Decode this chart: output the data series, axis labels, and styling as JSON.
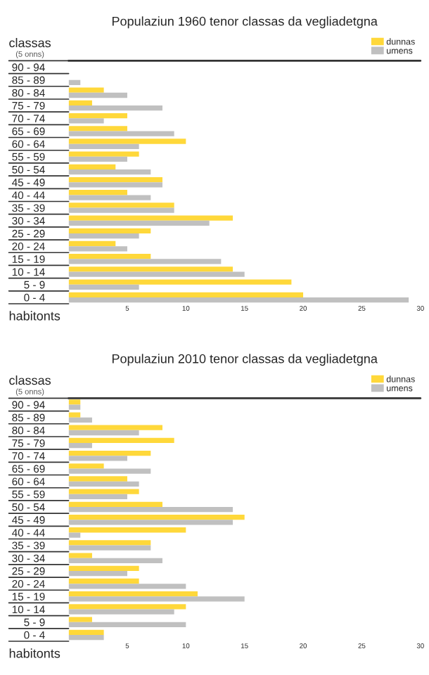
{
  "chart_data": [
    {
      "type": "bar",
      "orientation": "horizontal",
      "title": "Populaziun 1960 tenor classas da vegliadetgna",
      "ylabel": "classas",
      "xlabel": "habitonts",
      "annotations": [
        "(5 onns)"
      ],
      "categories": [
        "90 - 94",
        "85 - 89",
        "80 - 84",
        "75 - 79",
        "70 - 74",
        "65 - 69",
        "60 - 64",
        "55 - 59",
        "50 - 54",
        "45 - 49",
        "40 - 44",
        "35 - 39",
        "30 - 34",
        "25 - 29",
        "20 - 24",
        "15 - 19",
        "10 - 14",
        "5 - 9",
        "0 - 4"
      ],
      "series": [
        {
          "name": "dunnas",
          "color": "#ffd83a",
          "values": [
            0,
            0,
            3,
            2,
            5,
            5,
            10,
            6,
            4,
            8,
            5,
            9,
            14,
            7,
            4,
            7,
            14,
            19,
            20
          ]
        },
        {
          "name": "umens",
          "color": "#c0c0c0",
          "values": [
            0,
            1,
            5,
            8,
            3,
            9,
            6,
            5,
            7,
            8,
            7,
            9,
            12,
            6,
            5,
            13,
            15,
            6,
            29
          ]
        }
      ],
      "xlim": [
        0,
        30
      ],
      "xticks": [
        5,
        10,
        15,
        20,
        25,
        30
      ],
      "grid": false,
      "legend": "top right"
    },
    {
      "type": "bar",
      "orientation": "horizontal",
      "title": "Populaziun 2010 tenor classas da vegliadetgna",
      "ylabel": "classas",
      "xlabel": "habitonts",
      "annotations": [
        "(5 onns)"
      ],
      "categories": [
        "90 - 94",
        "85 - 89",
        "80 - 84",
        "75 - 79",
        "70 - 74",
        "65 - 69",
        "60 - 64",
        "55 - 59",
        "50 - 54",
        "45 - 49",
        "40 - 44",
        "35 - 39",
        "30 - 34",
        "25 - 29",
        "20 - 24",
        "15 - 19",
        "10 - 14",
        "5 - 9",
        "0 - 4"
      ],
      "series": [
        {
          "name": "dunnas",
          "color": "#ffd83a",
          "values": [
            1,
            1,
            8,
            9,
            7,
            3,
            5,
            6,
            8,
            15,
            10,
            7,
            2,
            6,
            6,
            11,
            10,
            2,
            3
          ]
        },
        {
          "name": "umens",
          "color": "#c0c0c0",
          "values": [
            1,
            2,
            6,
            2,
            5,
            7,
            6,
            5,
            14,
            14,
            1,
            7,
            8,
            5,
            10,
            15,
            9,
            10,
            3
          ]
        }
      ],
      "xlim": [
        0,
        30
      ],
      "xticks": [
        5,
        10,
        15,
        20,
        25,
        30
      ],
      "grid": false,
      "legend": "top right"
    }
  ]
}
